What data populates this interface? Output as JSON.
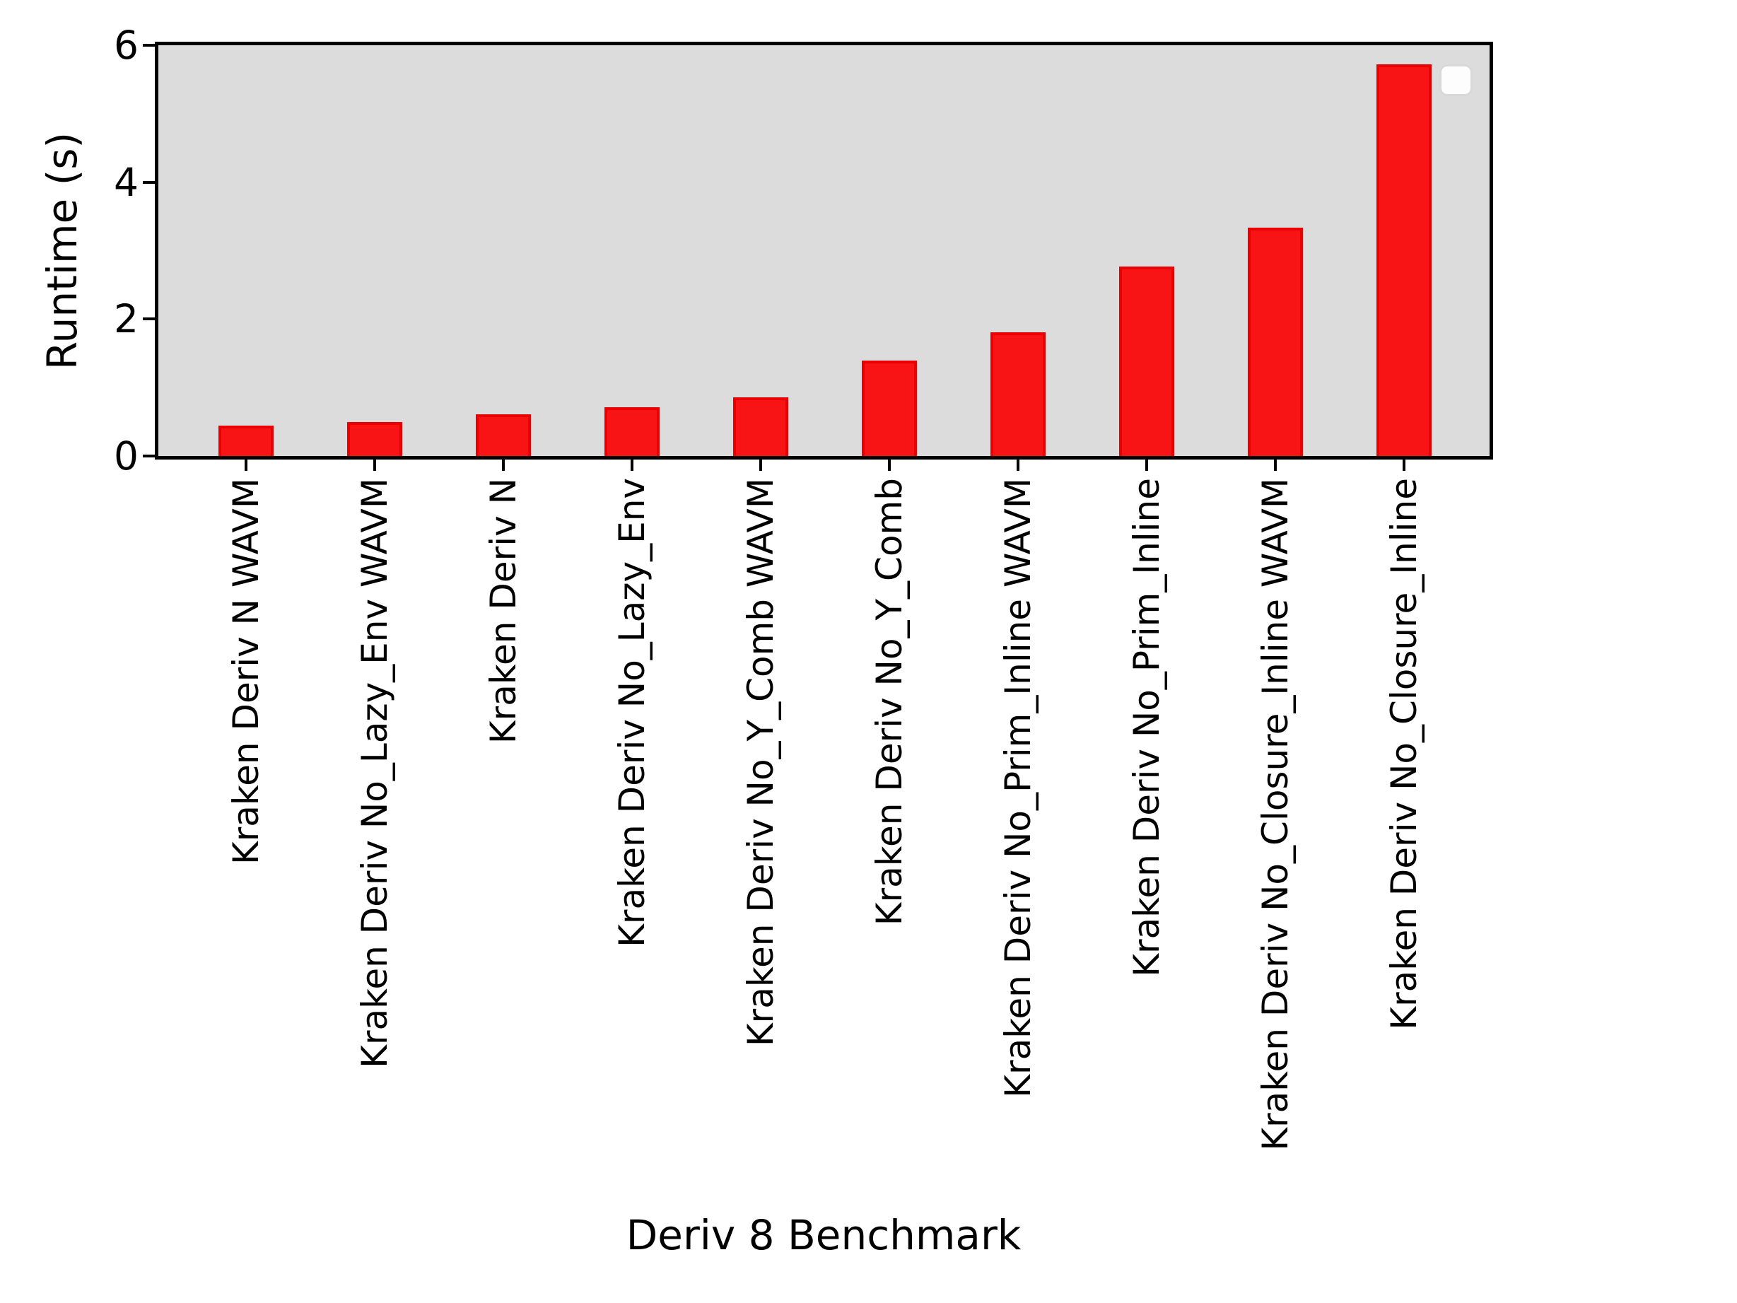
{
  "chart_data": {
    "type": "bar",
    "title": "",
    "xlabel": "Deriv 8 Benchmark",
    "ylabel": "Runtime (s)",
    "categories": [
      "Kraken Deriv N WAVM",
      "Kraken Deriv No_Lazy_Env WAVM",
      "Kraken Deriv N",
      "Kraken Deriv No_Lazy_Env",
      "Kraken Deriv No_Y_Comb WAVM",
      "Kraken Deriv No_Y_Comb",
      "Kraken Deriv No_Prim_Inline WAVM",
      "Kraken Deriv No_Prim_Inline",
      "Kraken Deriv No_Closure_Inline WAVM",
      "Kraken Deriv No_Closure_Inline"
    ],
    "values": [
      0.44,
      0.5,
      0.61,
      0.71,
      0.86,
      1.39,
      1.81,
      2.77,
      3.34,
      5.72
    ],
    "ylim": [
      0,
      6
    ],
    "yticks": [
      0,
      2,
      4,
      6
    ],
    "grid": false,
    "legend": {
      "position": "upper right",
      "entries": []
    },
    "colors": {
      "bar_fill": "#f81414",
      "bar_edge": "#ea0000",
      "plot_background": "#dcdcdc",
      "figure_background": "#ffffff",
      "axis": "#000000"
    }
  }
}
